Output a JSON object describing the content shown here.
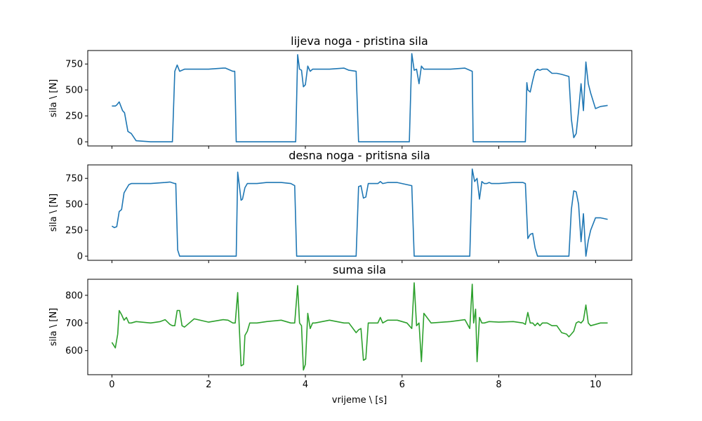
{
  "chart_data": [
    {
      "type": "line",
      "title": "lijeva noga - pristina sila",
      "xlabel": "",
      "ylabel": "sila \\ [N]",
      "xlim": [
        -0.5,
        10.75
      ],
      "ylim": [
        -40,
        880
      ],
      "yticks": [
        0,
        250,
        500,
        750
      ],
      "xticks": [
        0,
        2,
        4,
        6,
        8,
        10
      ],
      "xtick_labels_visible": false,
      "grid": false,
      "color": "#1f77b4",
      "series": [
        {
          "x": [
            0.0,
            0.07,
            0.1,
            0.15,
            0.22,
            0.26,
            0.33,
            0.4,
            0.5,
            0.8,
            1.2,
            1.25,
            1.3,
            1.35,
            1.4,
            1.45,
            1.5,
            1.6,
            1.7,
            2.0,
            2.3,
            2.35,
            2.5,
            2.54,
            2.57,
            3.3,
            3.8,
            3.84,
            3.88,
            3.92,
            3.96,
            4.0,
            4.05,
            4.1,
            4.15,
            4.2,
            4.5,
            4.8,
            4.9,
            5.05,
            5.1,
            6.0,
            6.15,
            6.2,
            6.25,
            6.3,
            6.35,
            6.4,
            6.45,
            6.6,
            7.0,
            7.3,
            7.45,
            7.47,
            8.55,
            8.58,
            8.6,
            8.65,
            8.7,
            8.75,
            8.8,
            8.85,
            8.9,
            8.95,
            9.0,
            9.05,
            9.1,
            9.15,
            9.2,
            9.3,
            9.45,
            9.5,
            9.55,
            9.6,
            9.65,
            9.7,
            9.75,
            9.8,
            9.85,
            9.9,
            10.0,
            10.1,
            10.25
          ],
          "y": [
            345,
            345,
            355,
            385,
            300,
            280,
            100,
            80,
            10,
            0,
            0,
            0,
            680,
            740,
            680,
            690,
            700,
            700,
            700,
            700,
            710,
            710,
            680,
            680,
            0,
            0,
            0,
            840,
            700,
            690,
            530,
            550,
            730,
            680,
            700,
            700,
            700,
            710,
            690,
            680,
            0,
            0,
            0,
            850,
            690,
            700,
            560,
            730,
            700,
            700,
            700,
            710,
            680,
            0,
            0,
            570,
            500,
            480,
            590,
            680,
            700,
            690,
            700,
            700,
            700,
            680,
            660,
            660,
            660,
            650,
            630,
            220,
            40,
            80,
            300,
            560,
            300,
            770,
            560,
            470,
            320,
            340,
            350
          ]
        }
      ]
    },
    {
      "type": "line",
      "title": "desna noga - pritisna sila",
      "xlabel": "",
      "ylabel": "sila \\ [N]",
      "xlim": [
        -0.5,
        10.75
      ],
      "ylim": [
        -40,
        880
      ],
      "yticks": [
        0,
        250,
        500,
        750
      ],
      "xticks": [
        0,
        2,
        4,
        6,
        8,
        10
      ],
      "xtick_labels_visible": false,
      "grid": false,
      "color": "#1f77b4",
      "series": [
        {
          "x": [
            0.0,
            0.05,
            0.1,
            0.15,
            0.2,
            0.25,
            0.3,
            0.35,
            0.4,
            0.45,
            0.5,
            0.8,
            1.1,
            1.2,
            1.3,
            1.32,
            1.36,
            1.4,
            2.0,
            2.5,
            2.57,
            2.6,
            2.63,
            2.67,
            2.7,
            2.75,
            2.8,
            2.85,
            3.0,
            3.2,
            3.5,
            3.7,
            3.78,
            3.82,
            4.5,
            5.0,
            5.05,
            5.1,
            5.15,
            5.2,
            5.25,
            5.3,
            5.4,
            5.5,
            5.55,
            5.6,
            5.7,
            5.9,
            6.1,
            6.2,
            6.25,
            7.0,
            7.4,
            7.45,
            7.5,
            7.55,
            7.6,
            7.65,
            7.7,
            7.75,
            7.8,
            7.85,
            8.0,
            8.3,
            8.5,
            8.55,
            8.6,
            8.65,
            8.7,
            8.75,
            8.8,
            9.3,
            9.45,
            9.5,
            9.55,
            9.6,
            9.65,
            9.7,
            9.75,
            9.8,
            9.85,
            9.9,
            10.0,
            10.1,
            10.25
          ],
          "y": [
            290,
            275,
            285,
            430,
            450,
            610,
            650,
            690,
            700,
            700,
            700,
            700,
            710,
            715,
            700,
            700,
            60,
            0,
            0,
            0,
            0,
            810,
            700,
            540,
            550,
            660,
            700,
            700,
            700,
            710,
            710,
            700,
            680,
            0,
            0,
            0,
            0,
            670,
            680,
            560,
            570,
            700,
            700,
            700,
            720,
            700,
            710,
            710,
            690,
            680,
            0,
            0,
            0,
            840,
            720,
            750,
            550,
            720,
            700,
            700,
            710,
            700,
            700,
            710,
            710,
            700,
            170,
            210,
            220,
            80,
            0,
            0,
            0,
            450,
            630,
            620,
            500,
            140,
            410,
            0,
            150,
            250,
            370,
            370,
            355
          ]
        }
      ]
    },
    {
      "type": "line",
      "title": "suma sila",
      "xlabel": "vrijeme \\ [s]",
      "ylabel": "sila \\ [N]",
      "xlim": [
        -0.5,
        10.75
      ],
      "ylim": [
        513,
        858
      ],
      "yticks": [
        600,
        700,
        800
      ],
      "xticks": [
        0,
        2,
        4,
        6,
        8,
        10
      ],
      "xtick_labels_visible": true,
      "grid": false,
      "color": "#2ca02c",
      "series": [
        {
          "x": [
            0.0,
            0.07,
            0.12,
            0.15,
            0.2,
            0.25,
            0.3,
            0.35,
            0.4,
            0.5,
            0.8,
            1.0,
            1.1,
            1.2,
            1.25,
            1.3,
            1.35,
            1.4,
            1.45,
            1.5,
            1.6,
            1.7,
            2.0,
            2.3,
            2.4,
            2.5,
            2.55,
            2.6,
            2.63,
            2.67,
            2.72,
            2.75,
            2.8,
            2.85,
            2.9,
            3.0,
            3.2,
            3.5,
            3.7,
            3.78,
            3.84,
            3.88,
            3.92,
            3.96,
            4.0,
            4.05,
            4.1,
            4.15,
            4.2,
            4.5,
            4.8,
            4.9,
            5.05,
            5.1,
            5.15,
            5.2,
            5.25,
            5.3,
            5.4,
            5.5,
            5.55,
            5.6,
            5.7,
            5.9,
            6.1,
            6.2,
            6.25,
            6.3,
            6.35,
            6.4,
            6.45,
            6.6,
            7.0,
            7.3,
            7.4,
            7.45,
            7.48,
            7.52,
            7.55,
            7.6,
            7.65,
            7.7,
            7.8,
            8.0,
            8.3,
            8.5,
            8.55,
            8.6,
            8.65,
            8.7,
            8.75,
            8.8,
            8.85,
            8.9,
            9.0,
            9.1,
            9.2,
            9.3,
            9.4,
            9.45,
            9.5,
            9.55,
            9.6,
            9.65,
            9.7,
            9.75,
            9.8,
            9.85,
            9.9,
            10.0,
            10.1,
            10.25
          ],
          "y": [
            630,
            610,
            660,
            745,
            730,
            710,
            720,
            700,
            700,
            705,
            700,
            705,
            712,
            695,
            690,
            690,
            745,
            745,
            690,
            685,
            700,
            715,
            703,
            712,
            710,
            700,
            700,
            810,
            700,
            545,
            550,
            655,
            670,
            700,
            700,
            700,
            705,
            710,
            700,
            700,
            835,
            700,
            690,
            530,
            550,
            735,
            680,
            700,
            700,
            710,
            700,
            700,
            665,
            675,
            680,
            565,
            570,
            700,
            700,
            700,
            720,
            700,
            710,
            710,
            700,
            680,
            845,
            690,
            700,
            560,
            735,
            700,
            705,
            712,
            680,
            840,
            700,
            750,
            560,
            720,
            700,
            700,
            705,
            703,
            705,
            700,
            695,
            738,
            700,
            700,
            690,
            700,
            690,
            700,
            700,
            690,
            690,
            665,
            660,
            650,
            660,
            670,
            700,
            705,
            700,
            710,
            765,
            700,
            690,
            695,
            700,
            700
          ]
        }
      ]
    }
  ]
}
